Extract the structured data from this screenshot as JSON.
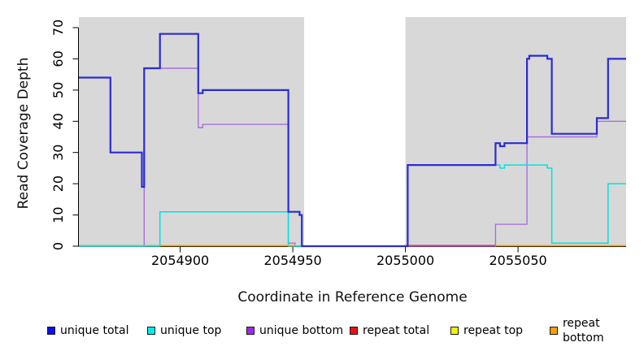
{
  "chart_data": {
    "type": "line",
    "style": "step",
    "title": "",
    "x_axis": {
      "label": "Coordinate in Reference Genome",
      "ticks": [
        2054900,
        2054950,
        2055000,
        2055050
      ],
      "range": [
        2054855,
        2055098
      ]
    },
    "y_axis": {
      "label": "Read Coverage Depth",
      "ticks": [
        0,
        10,
        20,
        30,
        40,
        50,
        60,
        70
      ],
      "range": [
        0,
        73
      ]
    },
    "background_regions": [
      {
        "from": 2054855,
        "to": 2054955,
        "color": "#d8d8d8"
      },
      {
        "from": 2055000,
        "to": 2055098,
        "color": "#d8d8d8"
      }
    ],
    "series": [
      {
        "name": "unique bottom",
        "color": "#a86ee0",
        "width": 1.4,
        "steps": [
          [
            2054855,
            0
          ],
          [
            2054884,
            57
          ],
          [
            2054908,
            38
          ],
          [
            2054910,
            39
          ],
          [
            2054948,
            1
          ],
          [
            2054951,
            0
          ],
          [
            2055040,
            7
          ],
          [
            2055054,
            35
          ],
          [
            2055085,
            40
          ]
        ],
        "end": 2055098
      },
      {
        "name": "unique top",
        "color": "#00e2e2",
        "width": 1.5,
        "steps": [
          [
            2054855,
            0
          ],
          [
            2054891,
            11
          ],
          [
            2054948,
            0
          ],
          [
            2055001,
            26
          ],
          [
            2055042,
            25
          ],
          [
            2055044,
            26
          ],
          [
            2055063,
            25
          ],
          [
            2055065,
            1
          ],
          [
            2055090,
            20
          ]
        ],
        "end": 2055098
      },
      {
        "name": "unique total",
        "color": "#2b2bd5",
        "width": 2.2,
        "steps": [
          [
            2054855,
            54
          ],
          [
            2054869,
            30
          ],
          [
            2054883,
            19
          ],
          [
            2054884,
            57
          ],
          [
            2054891,
            68
          ],
          [
            2054908,
            49
          ],
          [
            2054910,
            50
          ],
          [
            2054948,
            11
          ],
          [
            2054953,
            10
          ],
          [
            2054954,
            0
          ],
          [
            2055001,
            26
          ],
          [
            2055040,
            33
          ],
          [
            2055042,
            32
          ],
          [
            2055044,
            33
          ],
          [
            2055054,
            60
          ],
          [
            2055055,
            61
          ],
          [
            2055063,
            60
          ],
          [
            2055065,
            36
          ],
          [
            2055085,
            41
          ],
          [
            2055090,
            60
          ]
        ],
        "end": 2055098
      }
    ],
    "baseline_segments": [
      {
        "from": 2054855,
        "to": 2054891,
        "value": 0,
        "color": "#6ecc8a"
      },
      {
        "from": 2054891,
        "to": 2054951,
        "value": 0,
        "color": "#ff9e00"
      },
      {
        "from": 2055000,
        "to": 2055040,
        "value": 0,
        "color": "#c23a66"
      },
      {
        "from": 2055040,
        "to": 2055098,
        "value": 0,
        "color": "#ff9e00"
      }
    ],
    "legend": [
      {
        "label": "unique total",
        "color": "#0f0fee"
      },
      {
        "label": "unique top",
        "color": "#00eded"
      },
      {
        "label": "unique bottom",
        "color": "#a226f0"
      },
      {
        "label": "repeat total",
        "color": "#ee1111"
      },
      {
        "label": "repeat top",
        "color": "#f2f200"
      },
      {
        "label": "repeat bottom",
        "color": "#ff9e00"
      }
    ]
  }
}
